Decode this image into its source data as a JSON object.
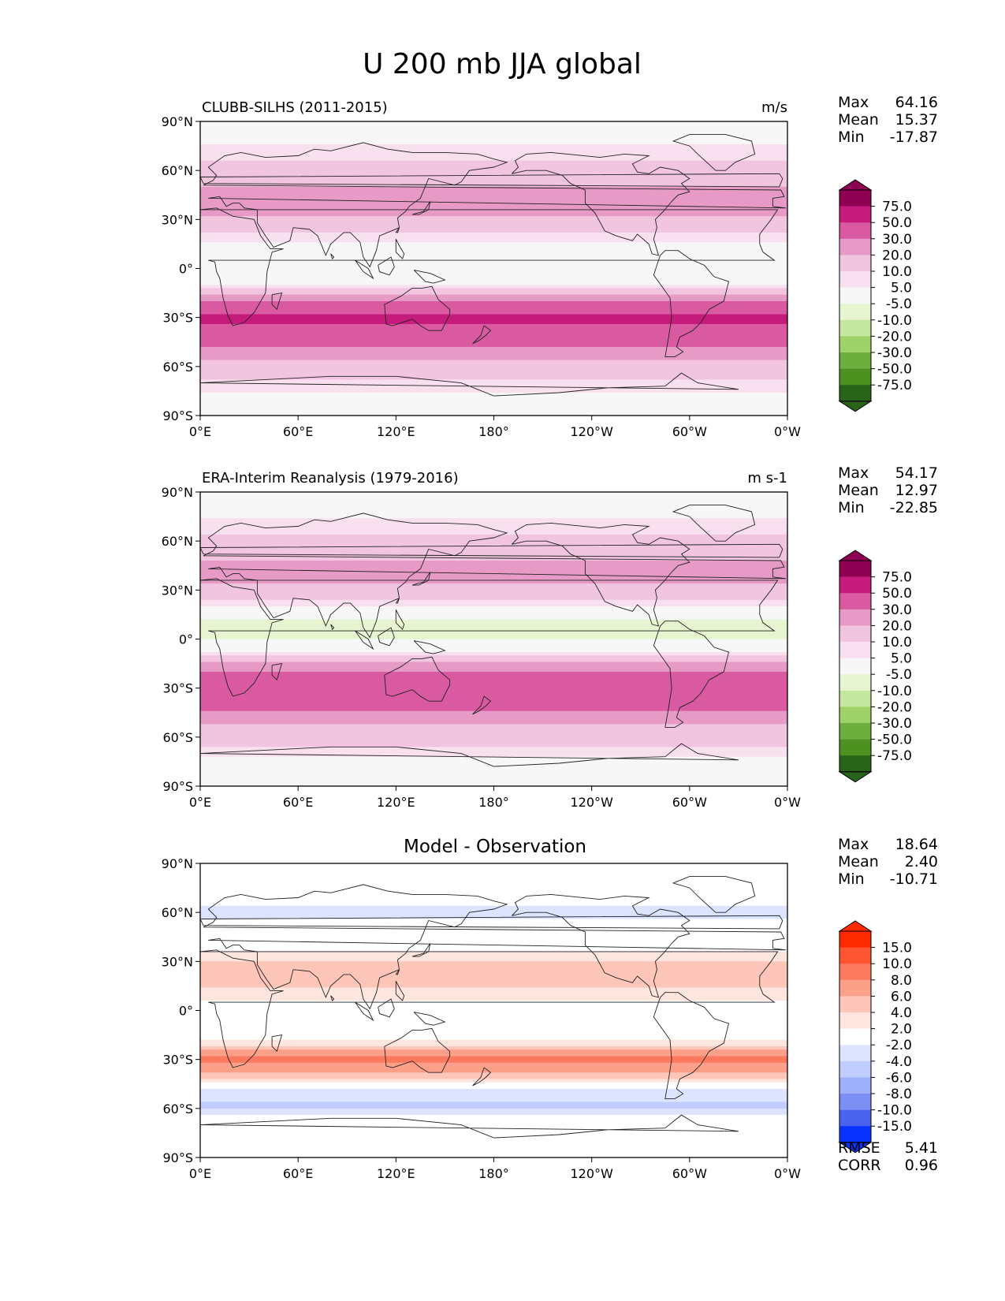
{
  "figure": {
    "title": "U 200 mb JJA global"
  },
  "axes": {
    "lat_ticks": [
      "90°N",
      "60°N",
      "30°N",
      "0°",
      "30°S",
      "60°S",
      "90°S"
    ],
    "lon_ticks": [
      "0°E",
      "60°E",
      "120°E",
      "180°",
      "120°W",
      "60°W",
      "0°W"
    ]
  },
  "colormaps": {
    "field": {
      "levels": [
        "75.0",
        "50.0",
        "30.0",
        "20.0",
        "10.0",
        "5.0",
        "-5.0",
        "-10.0",
        "-20.0",
        "-30.0",
        "-50.0",
        "-75.0"
      ],
      "colors": [
        "#8e0152",
        "#c51b7d",
        "#d95aa0",
        "#e79ac6",
        "#f1c4e0",
        "#f8e0ee",
        "#f7f7f7",
        "#e6f5d0",
        "#c5e8a0",
        "#9fd36a",
        "#6eae3e",
        "#4d9221",
        "#276419"
      ]
    },
    "diff": {
      "levels": [
        "15.0",
        "10.0",
        "8.0",
        "6.0",
        "4.0",
        "2.0",
        "-2.0",
        "-4.0",
        "-6.0",
        "-8.0",
        "-10.0",
        "-15.0"
      ],
      "colors": [
        "#ff2a00",
        "#ff5533",
        "#fb7a60",
        "#fca08a",
        "#fdc6b8",
        "#fee6df",
        "#ffffff",
        "#dde4ff",
        "#c2cdff",
        "#9fb0fa",
        "#7c8ff4",
        "#4a64f0",
        "#0a32ff"
      ]
    }
  },
  "panels": [
    {
      "id": "model",
      "left_title": "CLUBB-SILHS (2011-2015)",
      "right_title": "m/s",
      "center_title": "",
      "stats": {
        "max_label": "Max",
        "max": "64.16",
        "mean_label": "Mean",
        "mean": "15.37",
        "min_label": "Min",
        "min": "-17.87"
      },
      "colormap": "field",
      "zonal_profile_ms": [
        {
          "lat": 80,
          "u": 3
        },
        {
          "lat": 70,
          "u": 8
        },
        {
          "lat": 60,
          "u": 14
        },
        {
          "lat": 50,
          "u": 20
        },
        {
          "lat": 40,
          "u": 25
        },
        {
          "lat": 30,
          "u": 18
        },
        {
          "lat": 20,
          "u": 8
        },
        {
          "lat": 10,
          "u": -2
        },
        {
          "lat": 0,
          "u": -5
        },
        {
          "lat": -10,
          "u": 6
        },
        {
          "lat": -20,
          "u": 30
        },
        {
          "lat": -30,
          "u": 55
        },
        {
          "lat": -40,
          "u": 42
        },
        {
          "lat": -50,
          "u": 28
        },
        {
          "lat": -60,
          "u": 16
        },
        {
          "lat": -70,
          "u": 8
        },
        {
          "lat": -80,
          "u": 2
        }
      ]
    },
    {
      "id": "obs",
      "left_title": "ERA-Interim Reanalysis (1979-2016)",
      "right_title": "m s-1",
      "center_title": "",
      "stats": {
        "max_label": "Max",
        "max": "54.17",
        "mean_label": "Mean",
        "mean": "12.97",
        "min_label": "Min",
        "min": "-22.85"
      },
      "colormap": "field",
      "zonal_profile_ms": [
        {
          "lat": 80,
          "u": 2
        },
        {
          "lat": 70,
          "u": 7
        },
        {
          "lat": 60,
          "u": 12
        },
        {
          "lat": 50,
          "u": 18
        },
        {
          "lat": 40,
          "u": 26
        },
        {
          "lat": 30,
          "u": 16
        },
        {
          "lat": 20,
          "u": 4
        },
        {
          "lat": 10,
          "u": -8
        },
        {
          "lat": 0,
          "u": -6
        },
        {
          "lat": -10,
          "u": 8
        },
        {
          "lat": -20,
          "u": 32
        },
        {
          "lat": -30,
          "u": 48
        },
        {
          "lat": -40,
          "u": 36
        },
        {
          "lat": -50,
          "u": 22
        },
        {
          "lat": -60,
          "u": 14
        },
        {
          "lat": -70,
          "u": 6
        },
        {
          "lat": -80,
          "u": 1
        }
      ]
    },
    {
      "id": "diff",
      "left_title": "",
      "right_title": "",
      "center_title": "Model - Observation",
      "stats": {
        "max_label": "Max",
        "max": "18.64",
        "mean_label": "Mean",
        "mean": "2.40",
        "min_label": "Min",
        "min": "-10.71"
      },
      "extra_stats": {
        "rmse_label": "RMSE",
        "rmse": "5.41",
        "corr_label": "CORR",
        "corr": "0.96"
      },
      "colormap": "diff",
      "zonal_profile_ms": [
        {
          "lat": 80,
          "u": 0.5
        },
        {
          "lat": 70,
          "u": -1
        },
        {
          "lat": 60,
          "u": -2.5
        },
        {
          "lat": 50,
          "u": -1.5
        },
        {
          "lat": 40,
          "u": 0.5
        },
        {
          "lat": 30,
          "u": 4
        },
        {
          "lat": 20,
          "u": 6
        },
        {
          "lat": 10,
          "u": 3
        },
        {
          "lat": 0,
          "u": 0.5
        },
        {
          "lat": -10,
          "u": -1
        },
        {
          "lat": -20,
          "u": 3
        },
        {
          "lat": -30,
          "u": 9
        },
        {
          "lat": -40,
          "u": 5
        },
        {
          "lat": -50,
          "u": -3
        },
        {
          "lat": -60,
          "u": -4.5
        },
        {
          "lat": -70,
          "u": 1.5
        },
        {
          "lat": -80,
          "u": 0.5
        }
      ]
    }
  ]
}
